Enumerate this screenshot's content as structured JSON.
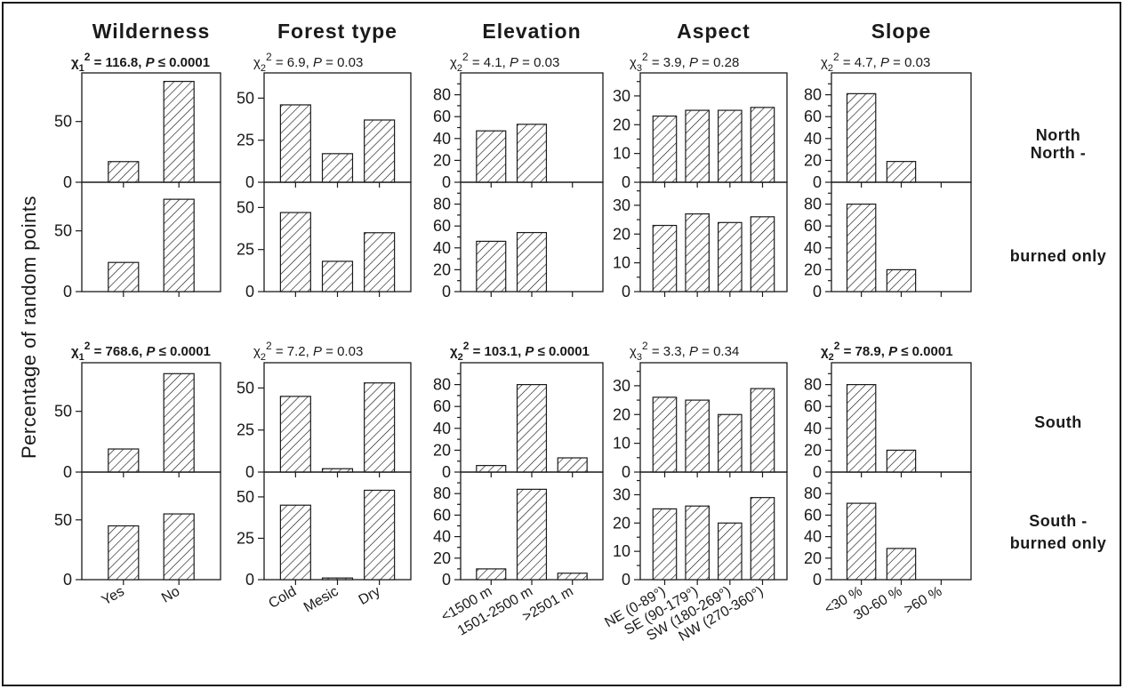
{
  "figure": {
    "y_axis_label": "Percentage of random points",
    "row_labels": [
      [
        "North"
      ],
      [
        "North -",
        "burned only"
      ],
      [
        "South"
      ],
      [
        "South -",
        "burned only"
      ]
    ]
  },
  "chart_data": {
    "type": "bar",
    "panels": [
      {
        "title": "Wilderness",
        "categories": [
          "Yes",
          "No"
        ],
        "ylim": [
          0,
          90
        ],
        "yticks": [
          0,
          50
        ],
        "stats": [
          {
            "chi": "χ",
            "df": "1",
            "text": " = 116.8, P ≤ 0.0001",
            "bold": true
          },
          {
            "chi": "χ",
            "df": "1",
            "text": " = 768.6, P ≤ 0.0001",
            "bold": true
          }
        ],
        "rows": [
          [
            17,
            83
          ],
          [
            24,
            76
          ],
          [
            19,
            81
          ],
          [
            45,
            55
          ]
        ]
      },
      {
        "title": "Forest type",
        "categories": [
          "Cold",
          "Mesic",
          "Dry"
        ],
        "ylim": [
          0,
          65
        ],
        "yticks": [
          0,
          25,
          50
        ],
        "stats": [
          {
            "chi": "χ",
            "df": "2",
            "text": " = 6.9, P = 0.03",
            "bold": false
          },
          {
            "chi": "χ",
            "df": "2",
            "text": " = 7.2, P = 0.03",
            "bold": false
          }
        ],
        "rows": [
          [
            46,
            17,
            37
          ],
          [
            47,
            18,
            35
          ],
          [
            45,
            2,
            53
          ],
          [
            45,
            1,
            54
          ]
        ]
      },
      {
        "title": "Elevation",
        "categories": [
          "<1500 m",
          "1501-2500 m",
          ">2501 m"
        ],
        "ylim": [
          0,
          100
        ],
        "yticks": [
          0,
          10,
          20,
          30,
          40,
          50,
          60,
          70,
          80,
          90
        ],
        "ylabels": [
          0,
          20,
          40,
          60,
          80
        ],
        "stats": [
          {
            "chi": "χ",
            "df": "2",
            "text": " = 4.1, P = 0.03",
            "bold": false
          },
          {
            "chi": "χ",
            "df": "2",
            "text": " = 103.1, P ≤ 0.0001",
            "bold": true
          }
        ],
        "rows": [
          [
            47,
            53,
            null
          ],
          [
            46,
            54,
            null
          ],
          [
            6,
            80,
            13
          ],
          [
            10,
            84,
            6
          ]
        ]
      },
      {
        "title": "Aspect",
        "categories": [
          "NE (0-89°)",
          "SE (90-179°)",
          "SW (180-269°)",
          "NW (270-360°)"
        ],
        "ylim": [
          0,
          38
        ],
        "yticks": [
          0,
          5,
          10,
          15,
          20,
          25,
          30,
          35
        ],
        "ylabels": [
          0,
          10,
          20,
          30
        ],
        "stats": [
          {
            "chi": "χ",
            "df": "3",
            "text": " = 3.9, P = 0.28",
            "bold": false
          },
          {
            "chi": "χ",
            "df": "3",
            "text": " = 3.3, P = 0.34",
            "bold": false
          }
        ],
        "rows": [
          [
            23,
            25,
            25,
            26
          ],
          [
            23,
            27,
            24,
            26
          ],
          [
            26,
            25,
            20,
            29
          ],
          [
            25,
            26,
            20,
            29
          ]
        ]
      },
      {
        "title": "Slope",
        "categories": [
          "<30 %",
          "30-60 %",
          ">60 %"
        ],
        "ylim": [
          0,
          100
        ],
        "yticks": [
          0,
          10,
          20,
          30,
          40,
          50,
          60,
          70,
          80,
          90
        ],
        "ylabels": [
          0,
          20,
          40,
          60,
          80
        ],
        "stats": [
          {
            "chi": "χ",
            "df": "2",
            "text": " = 4.7, P = 0.03",
            "bold": false
          },
          {
            "chi": "χ",
            "df": "2",
            "text": " = 78.9, P ≤ 0.0001",
            "bold": true
          }
        ],
        "rows": [
          [
            81,
            19,
            null
          ],
          [
            80,
            20,
            null
          ],
          [
            80,
            20,
            null
          ],
          [
            71,
            29,
            null
          ]
        ]
      }
    ]
  }
}
